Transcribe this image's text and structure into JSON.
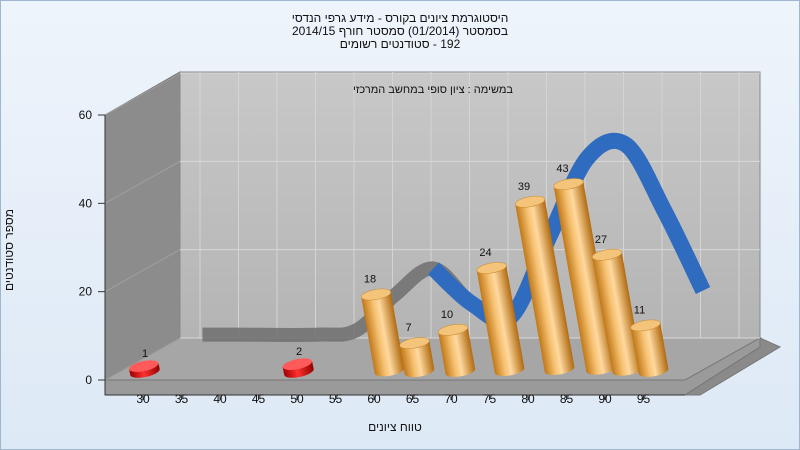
{
  "chart_data": {
    "type": "bar",
    "title_lines": [
      "היסטוגרמת ציונים בקורס - מידע גרפי הנדסי",
      "בסמסטר  (01/2014)  סמסטר חורף 2014/15",
      "192 - סטודנטים רשומים"
    ],
    "subtitle": "במשימה : ציון סופי במחשב המרכזי",
    "xlabel": "טווח ציונים",
    "ylabel": "מספר סטודנטים",
    "ylim": [
      0,
      60
    ],
    "yticks": [
      "0",
      "20",
      "40",
      "60"
    ],
    "categories": [
      "30",
      "35",
      "40",
      "45",
      "50",
      "55",
      "60",
      "65",
      "70",
      "75",
      "80",
      "85",
      "90",
      "95"
    ],
    "values": [
      1,
      0,
      0,
      0,
      2,
      0,
      18,
      7,
      10,
      24,
      39,
      43,
      27,
      11
    ],
    "data_labels": [
      "1",
      "",
      "",
      "",
      "2",
      "",
      "18",
      "7",
      "10",
      "24",
      "39",
      "43",
      "27",
      "11"
    ],
    "fail_color": "#e01010",
    "pass_color": "#e0a050",
    "curve_color": "#2f6bbf",
    "curve": [
      {
        "x": "35",
        "y": 8
      },
      {
        "x": "40",
        "y": 8
      },
      {
        "x": "50",
        "y": 8
      },
      {
        "x": "55",
        "y": 9
      },
      {
        "x": "60",
        "y": 17
      },
      {
        "x": "65",
        "y": 23
      },
      {
        "x": "70",
        "y": 15
      },
      {
        "x": "75",
        "y": 12
      },
      {
        "x": "80",
        "y": 30
      },
      {
        "x": "85",
        "y": 48
      },
      {
        "x": "90",
        "y": 51
      },
      {
        "x": "95",
        "y": 36
      },
      {
        "x": "100",
        "y": 18
      }
    ],
    "grid": true
  }
}
